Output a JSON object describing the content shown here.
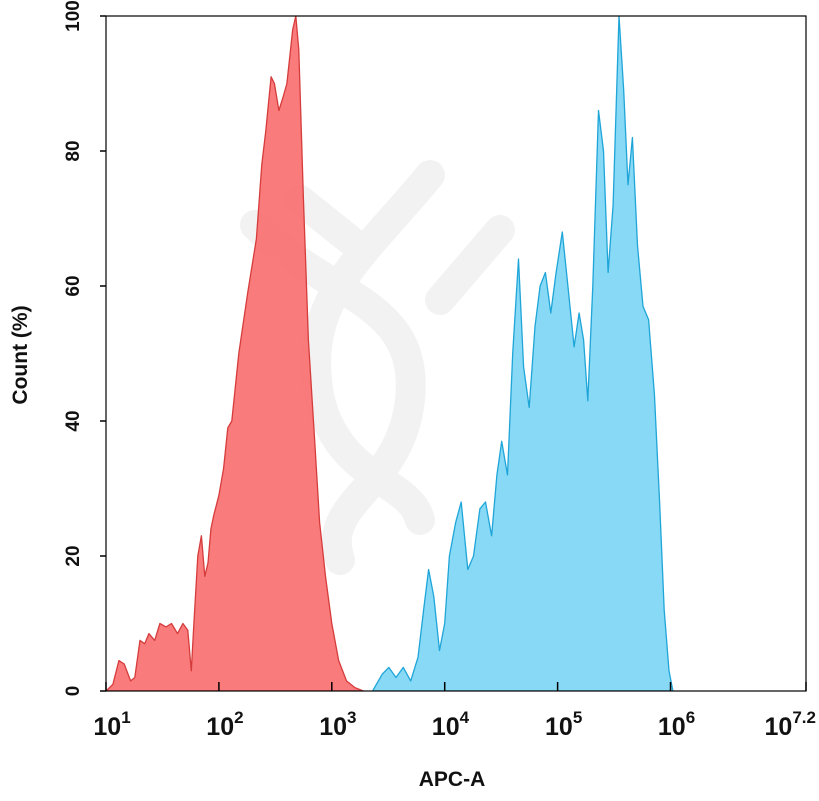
{
  "chart_data": {
    "type": "area",
    "title": "",
    "xlabel": "APC-A",
    "ylabel": "Count  (%)",
    "x_scale": "log10",
    "xlim": [
      10,
      15848932
    ],
    "ylim": [
      0,
      100
    ],
    "x_ticks": [
      {
        "base": "10",
        "exp": "1",
        "value": 10
      },
      {
        "base": "10",
        "exp": "2",
        "value": 100
      },
      {
        "base": "10",
        "exp": "3",
        "value": 1000
      },
      {
        "base": "10",
        "exp": "4",
        "value": 10000
      },
      {
        "base": "10",
        "exp": "5",
        "value": 100000
      },
      {
        "base": "10",
        "exp": "6",
        "value": 1000000
      },
      {
        "base": "10",
        "exp": "7.2",
        "value": 15848932
      }
    ],
    "y_ticks": [
      "0",
      "20",
      "40",
      "60",
      "80",
      "100"
    ],
    "grid": false,
    "series": [
      {
        "color": "#f97070",
        "stroke": "#d63c3c",
        "points": [
          [
            10,
            0
          ],
          [
            11.5,
            1
          ],
          [
            13,
            4.5
          ],
          [
            14.5,
            4
          ],
          [
            16.5,
            1.5
          ],
          [
            18,
            2
          ],
          [
            20,
            7.5
          ],
          [
            22,
            7
          ],
          [
            24,
            8.5
          ],
          [
            27,
            7.5
          ],
          [
            30,
            10
          ],
          [
            34,
            9.5
          ],
          [
            38,
            10
          ],
          [
            43,
            8.5
          ],
          [
            48,
            10
          ],
          [
            53,
            9
          ],
          [
            57,
            3
          ],
          [
            60,
            10
          ],
          [
            65,
            20
          ],
          [
            70,
            23
          ],
          [
            75,
            17
          ],
          [
            80,
            19
          ],
          [
            85,
            24
          ],
          [
            90,
            26
          ],
          [
            100,
            29
          ],
          [
            110,
            33
          ],
          [
            120,
            39
          ],
          [
            130,
            40
          ],
          [
            150,
            50
          ],
          [
            180,
            59
          ],
          [
            215,
            67
          ],
          [
            240,
            78
          ],
          [
            260,
            83
          ],
          [
            290,
            91
          ],
          [
            310,
            90
          ],
          [
            340,
            86
          ],
          [
            370,
            88
          ],
          [
            400,
            90
          ],
          [
            450,
            98
          ],
          [
            480,
            100
          ],
          [
            510,
            95
          ],
          [
            560,
            73
          ],
          [
            620,
            52
          ],
          [
            700,
            38
          ],
          [
            780,
            25
          ],
          [
            880,
            17
          ],
          [
            1000,
            10
          ],
          [
            1150,
            4.5
          ],
          [
            1350,
            1.5
          ],
          [
            1600,
            0.5
          ],
          [
            1900,
            0
          ]
        ]
      },
      {
        "color": "#7dd6f4",
        "stroke": "#1fa5d8",
        "points": [
          [
            2300,
            0
          ],
          [
            2800,
            2.5
          ],
          [
            3200,
            3.5
          ],
          [
            3700,
            2
          ],
          [
            4300,
            3.5
          ],
          [
            5000,
            1.5
          ],
          [
            5800,
            5
          ],
          [
            6500,
            12
          ],
          [
            7200,
            18
          ],
          [
            8000,
            14
          ],
          [
            9000,
            6
          ],
          [
            10000,
            10
          ],
          [
            11000,
            20
          ],
          [
            12500,
            25
          ],
          [
            14000,
            28
          ],
          [
            16000,
            18
          ],
          [
            18000,
            20
          ],
          [
            20500,
            27
          ],
          [
            23000,
            28
          ],
          [
            26000,
            23
          ],
          [
            29000,
            32
          ],
          [
            32000,
            37
          ],
          [
            36000,
            32
          ],
          [
            40000,
            50
          ],
          [
            45000,
            64
          ],
          [
            50000,
            48
          ],
          [
            56000,
            42
          ],
          [
            63000,
            54
          ],
          [
            70000,
            60
          ],
          [
            78000,
            62
          ],
          [
            87000,
            56
          ],
          [
            97000,
            62
          ],
          [
            110000,
            68
          ],
          [
            125000,
            59
          ],
          [
            140000,
            51
          ],
          [
            155000,
            56
          ],
          [
            170000,
            52
          ],
          [
            185000,
            43
          ],
          [
            205000,
            60
          ],
          [
            230000,
            86
          ],
          [
            255000,
            80
          ],
          [
            280000,
            62
          ],
          [
            310000,
            72
          ],
          [
            350000,
            100
          ],
          [
            385000,
            89
          ],
          [
            420000,
            75
          ],
          [
            460000,
            82
          ],
          [
            510000,
            66
          ],
          [
            570000,
            57
          ],
          [
            640000,
            55
          ],
          [
            720000,
            44
          ],
          [
            800000,
            28
          ],
          [
            880000,
            12
          ],
          [
            970000,
            3
          ],
          [
            1050000,
            0
          ]
        ]
      }
    ]
  }
}
